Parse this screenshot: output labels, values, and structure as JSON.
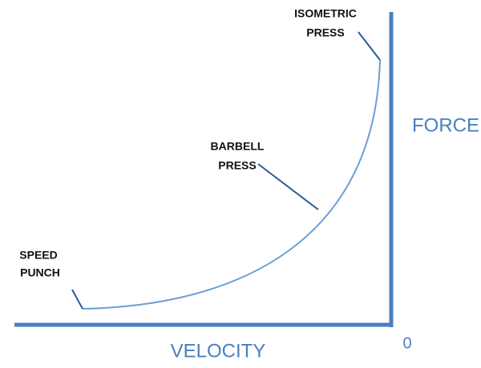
{
  "axes": {
    "x_label": "VELOCITY",
    "y_label": "FORCE",
    "origin_label": "0"
  },
  "annotations": [
    {
      "lines": [
        "ISOMETRIC",
        "PRESS"
      ]
    },
    {
      "lines": [
        "BARBELL",
        "PRESS"
      ]
    },
    {
      "lines": [
        "SPEED",
        "PUNCH"
      ]
    }
  ]
}
